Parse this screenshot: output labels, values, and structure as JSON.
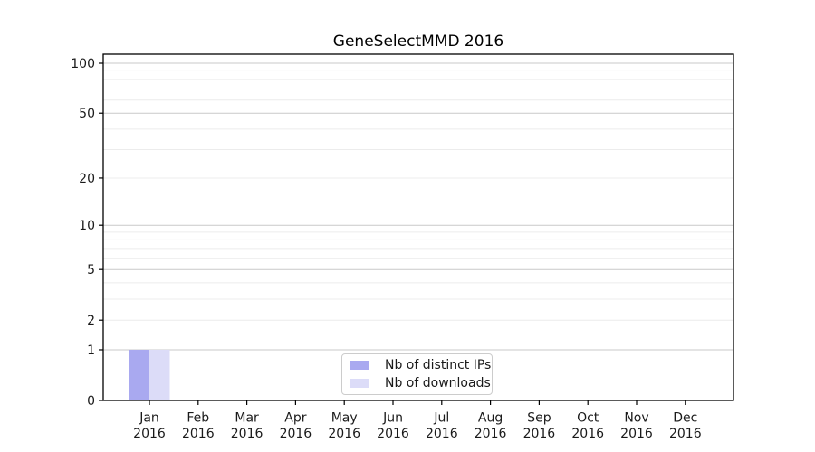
{
  "page_title": "GeneSelectMMD 2016",
  "chart_data": {
    "type": "bar",
    "title": "GeneSelectMMD 2016",
    "scale": "log1p",
    "xlabel": "",
    "ylabel": "",
    "categories": [
      "Jan 2016",
      "Feb 2016",
      "Mar 2016",
      "Apr 2016",
      "May 2016",
      "Jun 2016",
      "Jul 2016",
      "Aug 2016",
      "Sep 2016",
      "Oct 2016",
      "Nov 2016",
      "Dec 2016"
    ],
    "series": [
      {
        "name": "Nb of distinct IPs",
        "color": "#a9a9f0",
        "values": [
          1,
          0,
          0,
          0,
          0,
          0,
          0,
          0,
          0,
          0,
          0,
          0
        ]
      },
      {
        "name": "Nb of downloads",
        "color": "#dcdcf8",
        "values": [
          1,
          0,
          0,
          0,
          0,
          0,
          0,
          0,
          0,
          0,
          0,
          0
        ]
      }
    ],
    "yticks": [
      0,
      1,
      2,
      5,
      10,
      20,
      50,
      100
    ],
    "ylim": [
      0,
      113
    ],
    "grid": "horizontal",
    "legend_position": "lower center",
    "axis_color": "#000000",
    "tick_label_color": "#1a1a1a",
    "major_grid_color": "#c9c9c9",
    "minor_grid_color": "#ececec",
    "minor_grid_values": [
      2,
      3,
      4,
      6,
      7,
      8,
      9,
      20,
      30,
      40,
      60,
      70,
      80,
      90
    ],
    "major_grid_values": [
      1,
      5,
      10,
      50,
      100
    ]
  }
}
